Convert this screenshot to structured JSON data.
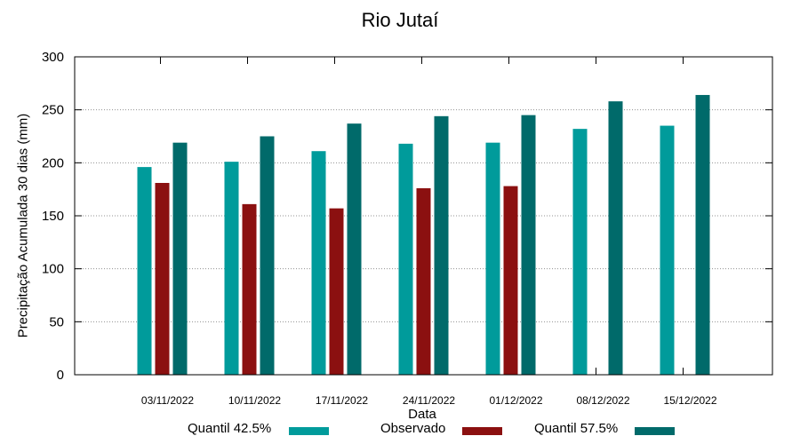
{
  "chart_data": {
    "type": "bar",
    "title": "Rio Jutaí",
    "xlabel": "Data",
    "ylabel": "Precipitação Acumulada 30 dias (mm)",
    "ylim": [
      0,
      300
    ],
    "yticks": [
      0,
      50,
      100,
      150,
      200,
      250,
      300
    ],
    "grid": true,
    "legend_position": "bottom",
    "categories": [
      "03/11/2022",
      "10/11/2022",
      "17/11/2022",
      "24/11/2022",
      "01/12/2022",
      "08/12/2022",
      "15/12/2022"
    ],
    "series": [
      {
        "name": "Quantil 42.5%",
        "color": "#009b9b",
        "values": [
          196,
          201,
          211,
          218,
          219,
          232,
          235
        ]
      },
      {
        "name": "Observado",
        "color": "#8b1010",
        "values": [
          181,
          161,
          157,
          176,
          178,
          null,
          null
        ]
      },
      {
        "name": "Quantil 57.5%",
        "color": "#006a6a",
        "values": [
          219,
          225,
          237,
          244,
          245,
          258,
          264
        ]
      }
    ]
  }
}
